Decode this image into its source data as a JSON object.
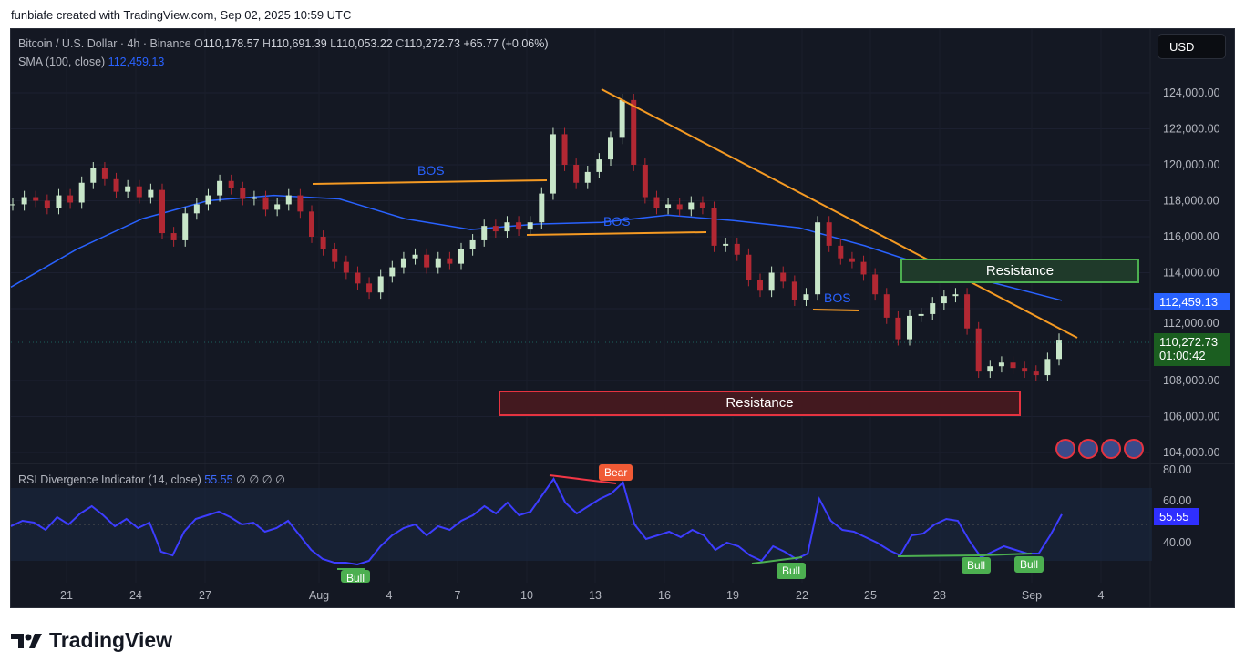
{
  "header": {
    "attribution": "funbiafe created with TradingView.com, Sep 02, 2025 10:59 UTC"
  },
  "legend": {
    "symbol": "Bitcoin / U.S. Dollar · 4h · Binance",
    "open_label": "O",
    "open": "110,178.57",
    "high_label": "H",
    "high": "110,691.39",
    "low_label": "L",
    "low": "110,053.22",
    "close_label": "C",
    "close": "110,272.73",
    "change": "+65.77 (+0.06%)",
    "sma_label": "SMA (100, close)",
    "sma_value": "112,459.13",
    "rsi_label": "RSI Divergence Indicator (14, close)",
    "rsi_value": "55.55",
    "rsi_extra": "∅ ∅ ∅ ∅"
  },
  "currency_button": "USD",
  "price_tags": {
    "sma": "112,459.13",
    "last": "110,272.73",
    "countdown": "01:00:42",
    "rsi": "55.55"
  },
  "annotations": {
    "bos": "BOS",
    "resistance_upper": "Resistance",
    "resistance_lower": "Resistance",
    "bear": "Bear",
    "bull": "Bull"
  },
  "logo": "TradingView",
  "colors": {
    "up": "#c8e6c9",
    "down": "#b22833",
    "sma": "#2962ff",
    "rsi": "#3d3dff",
    "trend": "#f59a23",
    "bos": "#f59a23",
    "green_box": "#4caf50",
    "red_box": "#e53340"
  },
  "chart_data": [
    {
      "type": "candlestick",
      "title": "Bitcoin / U.S. Dollar · 4h · Binance",
      "y_ticks": [
        "124,000.00",
        "122,000.00",
        "120,000.00",
        "118,000.00",
        "116,000.00",
        "114,000.00",
        "112,000.00",
        "108,000.00",
        "106,000.00",
        "104,000.00"
      ],
      "ylim": [
        104000,
        124000
      ],
      "x_ticks": [
        "21",
        "24",
        "27",
        "Aug",
        "4",
        "7",
        "10",
        "13",
        "16",
        "19",
        "22",
        "25",
        "28",
        "Sep",
        "4"
      ],
      "closes": [
        117800,
        118200,
        118000,
        117600,
        118300,
        117900,
        119000,
        119800,
        119200,
        118500,
        118800,
        118200,
        118600,
        116200,
        115800,
        117300,
        117800,
        118300,
        119100,
        118700,
        118100,
        118200,
        117500,
        117800,
        118300,
        117400,
        116000,
        115300,
        114600,
        114000,
        113400,
        112900,
        113800,
        114300,
        114800,
        115000,
        114300,
        114800,
        114500,
        115300,
        115800,
        116600,
        116300,
        116800,
        116400,
        116800,
        118400,
        121700,
        120000,
        119000,
        119600,
        120300,
        121500,
        123600,
        120000,
        118200,
        117600,
        117800,
        117500,
        117900,
        117600,
        115500,
        115600,
        115000,
        113600,
        113000,
        114000,
        113500,
        112500,
        112800,
        116800,
        115500,
        114800,
        114600,
        113900,
        112800,
        111500,
        110300,
        111600,
        111700,
        112300,
        112700,
        112800,
        110900,
        108500,
        108800,
        109000,
        108700,
        108500,
        108300,
        109200,
        110272.73
      ],
      "sma_100": [
        113200,
        115300,
        117000,
        118000,
        118300,
        118100,
        117000,
        116400,
        116700,
        116800,
        117200,
        116900,
        116500,
        115500,
        114300,
        113400,
        112459.13
      ],
      "last_price": 110272.73
    },
    {
      "type": "line",
      "title": "RSI Divergence Indicator (14, close)",
      "y_ticks": [
        "80.00",
        "60.00",
        "40.00"
      ],
      "ylim": [
        25,
        85
      ],
      "band": [
        30,
        70
      ],
      "values": [
        49,
        52,
        51,
        47,
        54,
        50,
        56,
        60,
        55,
        49,
        53,
        48,
        51,
        35,
        33,
        46,
        53,
        55,
        57,
        54,
        50,
        51,
        46,
        48,
        52,
        44,
        36,
        31,
        29,
        29,
        28,
        30,
        38,
        44,
        48,
        50,
        44,
        49,
        47,
        52,
        55,
        60,
        56,
        62,
        55,
        57,
        66,
        75,
        62,
        56,
        60,
        64,
        67,
        73,
        50,
        42,
        44,
        46,
        43,
        47,
        44,
        36,
        40,
        38,
        33,
        30,
        38,
        35,
        31,
        34,
        64,
        52,
        47,
        46,
        43,
        40,
        36,
        33,
        44,
        45,
        50,
        53,
        52,
        41,
        32,
        35,
        38,
        36,
        34,
        34,
        44,
        55.55
      ],
      "last_value": 55.55
    }
  ]
}
